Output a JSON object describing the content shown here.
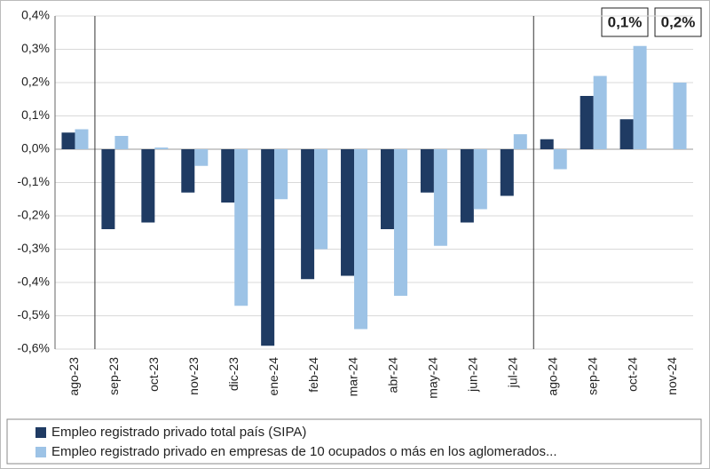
{
  "chart_data": {
    "type": "bar",
    "categories": [
      "ago-23",
      "sep-23",
      "oct-23",
      "nov-23",
      "dic-23",
      "ene-24",
      "feb-24",
      "mar-24",
      "abr-24",
      "may-24",
      "jun-24",
      "jul-24",
      "ago-24",
      "sep-24",
      "oct-24",
      "nov-24"
    ],
    "series": [
      {
        "name": "Empleo registrado privado total país (SIPA)",
        "color": "#1f3b63",
        "values": [
          0.05,
          -0.24,
          -0.22,
          -0.13,
          -0.16,
          -0.59,
          -0.39,
          -0.38,
          -0.24,
          -0.13,
          -0.22,
          -0.14,
          0.03,
          0.16,
          0.09,
          null
        ]
      },
      {
        "name": "Empleo registrado privado en empresas de 10 ocupados o más en los aglomerados...",
        "color": "#9dc3e6",
        "values": [
          0.06,
          0.04,
          0.005,
          -0.05,
          -0.47,
          -0.15,
          -0.3,
          -0.54,
          -0.44,
          -0.29,
          -0.18,
          0.045,
          -0.06,
          0.22,
          0.31,
          0.2
        ]
      }
    ],
    "ylim": [
      -0.6,
      0.4
    ],
    "yticks": [
      {
        "value": 0.4,
        "label": "0,4%"
      },
      {
        "value": 0.3,
        "label": "0,3%"
      },
      {
        "value": 0.2,
        "label": "0,2%"
      },
      {
        "value": 0.1,
        "label": "0,1%"
      },
      {
        "value": 0,
        "label": "0,0%"
      },
      {
        "value": -0.1,
        "label": "-0,1%"
      },
      {
        "value": -0.2,
        "label": "-0,2%"
      },
      {
        "value": -0.3,
        "label": "-0,3%"
      },
      {
        "value": -0.4,
        "label": "-0,4%"
      },
      {
        "value": -0.5,
        "label": "-0,5%"
      },
      {
        "value": -0.6,
        "label": "-0,6%"
      }
    ],
    "grid": true,
    "annotations": [
      "0,1%",
      "0,2%"
    ]
  }
}
